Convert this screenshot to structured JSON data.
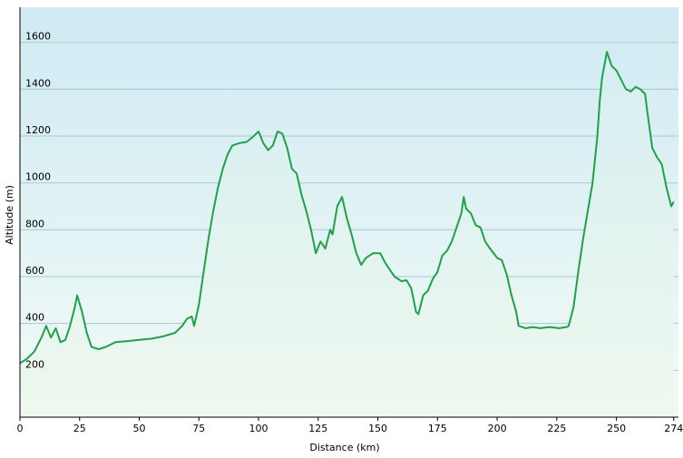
{
  "chart_data": {
    "type": "area",
    "xlabel": "Distance  (km)",
    "ylabel": "Altitude (m)",
    "xlim": [
      0,
      276
    ],
    "ylim": [
      0,
      1750
    ],
    "xticks": [
      0,
      25,
      50,
      75,
      100,
      125,
      150,
      175,
      200,
      225,
      250,
      274
    ],
    "yticks": [
      200,
      400,
      600,
      800,
      1000,
      1200,
      1400,
      1600
    ],
    "grid": true,
    "legend": "none",
    "colors": {
      "line": "#1fa14a",
      "fill_top": "#d6eef2",
      "fill_bottom": "#eef8ee",
      "background_top": "#cfeaf3",
      "background_bottom": "#f2faf6",
      "grid": "#a9c9cf"
    },
    "series": [
      {
        "points": [
          [
            0,
            230
          ],
          [
            3,
            250
          ],
          [
            6,
            280
          ],
          [
            9,
            340
          ],
          [
            11,
            390
          ],
          [
            13,
            340
          ],
          [
            15,
            380
          ],
          [
            17,
            320
          ],
          [
            19,
            330
          ],
          [
            21,
            390
          ],
          [
            23,
            470
          ],
          [
            24,
            520
          ],
          [
            26,
            450
          ],
          [
            28,
            360
          ],
          [
            30,
            300
          ],
          [
            33,
            290
          ],
          [
            36,
            300
          ],
          [
            40,
            320
          ],
          [
            45,
            325
          ],
          [
            50,
            330
          ],
          [
            55,
            335
          ],
          [
            60,
            345
          ],
          [
            65,
            360
          ],
          [
            68,
            390
          ],
          [
            70,
            420
          ],
          [
            72,
            430
          ],
          [
            73,
            390
          ],
          [
            75,
            480
          ],
          [
            77,
            620
          ],
          [
            79,
            760
          ],
          [
            81,
            880
          ],
          [
            83,
            980
          ],
          [
            85,
            1060
          ],
          [
            87,
            1120
          ],
          [
            89,
            1160
          ],
          [
            92,
            1170
          ],
          [
            95,
            1175
          ],
          [
            98,
            1200
          ],
          [
            100,
            1220
          ],
          [
            102,
            1170
          ],
          [
            104,
            1140
          ],
          [
            106,
            1160
          ],
          [
            108,
            1220
          ],
          [
            110,
            1210
          ],
          [
            112,
            1150
          ],
          [
            114,
            1060
          ],
          [
            116,
            1040
          ],
          [
            118,
            950
          ],
          [
            120,
            880
          ],
          [
            122,
            800
          ],
          [
            124,
            700
          ],
          [
            126,
            750
          ],
          [
            128,
            720
          ],
          [
            130,
            800
          ],
          [
            131,
            780
          ],
          [
            133,
            900
          ],
          [
            135,
            940
          ],
          [
            137,
            850
          ],
          [
            139,
            780
          ],
          [
            141,
            700
          ],
          [
            143,
            650
          ],
          [
            145,
            680
          ],
          [
            148,
            700
          ],
          [
            151,
            700
          ],
          [
            153,
            660
          ],
          [
            155,
            630
          ],
          [
            157,
            600
          ],
          [
            160,
            580
          ],
          [
            162,
            585
          ],
          [
            164,
            550
          ],
          [
            166,
            450
          ],
          [
            167,
            440
          ],
          [
            169,
            520
          ],
          [
            171,
            540
          ],
          [
            173,
            590
          ],
          [
            175,
            620
          ],
          [
            177,
            690
          ],
          [
            179,
            710
          ],
          [
            181,
            750
          ],
          [
            183,
            810
          ],
          [
            185,
            870
          ],
          [
            186,
            940
          ],
          [
            187,
            890
          ],
          [
            189,
            870
          ],
          [
            191,
            820
          ],
          [
            193,
            810
          ],
          [
            195,
            750
          ],
          [
            197,
            720
          ],
          [
            200,
            680
          ],
          [
            202,
            670
          ],
          [
            204,
            610
          ],
          [
            206,
            520
          ],
          [
            208,
            450
          ],
          [
            209,
            390
          ],
          [
            212,
            380
          ],
          [
            215,
            385
          ],
          [
            218,
            380
          ],
          [
            222,
            385
          ],
          [
            226,
            380
          ],
          [
            229,
            385
          ],
          [
            230,
            390
          ],
          [
            232,
            470
          ],
          [
            234,
            620
          ],
          [
            236,
            760
          ],
          [
            238,
            880
          ],
          [
            240,
            1000
          ],
          [
            242,
            1200
          ],
          [
            243,
            1350
          ],
          [
            244,
            1450
          ],
          [
            246,
            1560
          ],
          [
            248,
            1500
          ],
          [
            250,
            1480
          ],
          [
            252,
            1440
          ],
          [
            254,
            1400
          ],
          [
            256,
            1390
          ],
          [
            258,
            1410
          ],
          [
            260,
            1400
          ],
          [
            262,
            1380
          ],
          [
            263,
            1300
          ],
          [
            265,
            1150
          ],
          [
            267,
            1110
          ],
          [
            269,
            1080
          ],
          [
            271,
            980
          ],
          [
            273,
            900
          ],
          [
            274,
            920
          ]
        ]
      }
    ]
  }
}
